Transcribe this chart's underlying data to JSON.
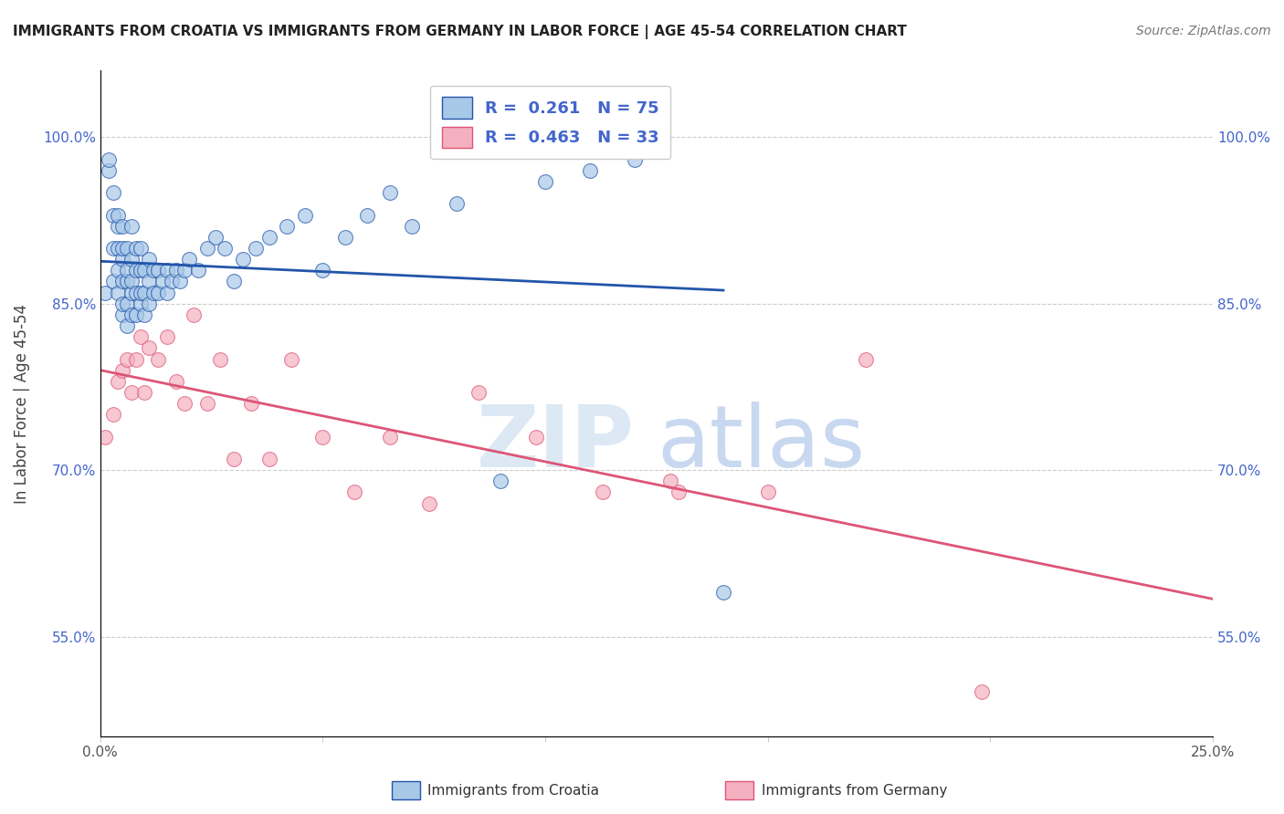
{
  "title": "IMMIGRANTS FROM CROATIA VS IMMIGRANTS FROM GERMANY IN LABOR FORCE | AGE 45-54 CORRELATION CHART",
  "source": "Source: ZipAtlas.com",
  "ylabel": "In Labor Force | Age 45-54",
  "xlim": [
    0.0,
    0.25
  ],
  "ylim": [
    0.46,
    1.06
  ],
  "xticks": [
    0.0,
    0.05,
    0.1,
    0.15,
    0.2,
    0.25
  ],
  "xticklabels": [
    "0.0%",
    "",
    "",
    "",
    "",
    "25.0%"
  ],
  "yticks": [
    0.55,
    0.7,
    0.85,
    1.0
  ],
  "yticklabels": [
    "55.0%",
    "70.0%",
    "85.0%",
    "100.0%"
  ],
  "R_croatia": 0.261,
  "N_croatia": 75,
  "R_germany": 0.463,
  "N_germany": 33,
  "color_croatia": "#a8c8e8",
  "color_germany": "#f4b0c0",
  "trend_croatia_color": "#2255aa",
  "trend_germany_color": "#dd5577",
  "legend_text_color": "#4466cc",
  "background_color": "#ffffff",
  "watermark_zip": "ZIP",
  "watermark_atlas": "atlas",
  "watermark_color": "#dde8f5",
  "grid_color": "#cccccc",
  "tick_color": "#4466cc",
  "croatia_x": [
    0.001,
    0.002,
    0.002,
    0.003,
    0.003,
    0.003,
    0.003,
    0.004,
    0.004,
    0.004,
    0.004,
    0.004,
    0.005,
    0.005,
    0.005,
    0.005,
    0.005,
    0.005,
    0.006,
    0.006,
    0.006,
    0.006,
    0.006,
    0.007,
    0.007,
    0.007,
    0.007,
    0.007,
    0.008,
    0.008,
    0.008,
    0.008,
    0.009,
    0.009,
    0.009,
    0.009,
    0.01,
    0.01,
    0.01,
    0.011,
    0.011,
    0.011,
    0.012,
    0.012,
    0.013,
    0.013,
    0.014,
    0.015,
    0.015,
    0.016,
    0.017,
    0.018,
    0.019,
    0.02,
    0.022,
    0.024,
    0.026,
    0.028,
    0.03,
    0.032,
    0.035,
    0.038,
    0.042,
    0.046,
    0.05,
    0.055,
    0.06,
    0.065,
    0.07,
    0.08,
    0.09,
    0.1,
    0.11,
    0.12,
    0.14
  ],
  "croatia_y": [
    0.86,
    0.97,
    0.98,
    0.87,
    0.9,
    0.93,
    0.95,
    0.86,
    0.88,
    0.9,
    0.92,
    0.93,
    0.84,
    0.85,
    0.87,
    0.89,
    0.9,
    0.92,
    0.83,
    0.85,
    0.87,
    0.88,
    0.9,
    0.84,
    0.86,
    0.87,
    0.89,
    0.92,
    0.84,
    0.86,
    0.88,
    0.9,
    0.85,
    0.86,
    0.88,
    0.9,
    0.84,
    0.86,
    0.88,
    0.85,
    0.87,
    0.89,
    0.86,
    0.88,
    0.86,
    0.88,
    0.87,
    0.86,
    0.88,
    0.87,
    0.88,
    0.87,
    0.88,
    0.89,
    0.88,
    0.9,
    0.91,
    0.9,
    0.87,
    0.89,
    0.9,
    0.91,
    0.92,
    0.93,
    0.88,
    0.91,
    0.93,
    0.95,
    0.92,
    0.94,
    0.69,
    0.96,
    0.97,
    0.98,
    0.59
  ],
  "germany_x": [
    0.001,
    0.003,
    0.004,
    0.005,
    0.006,
    0.007,
    0.008,
    0.009,
    0.01,
    0.011,
    0.013,
    0.015,
    0.017,
    0.019,
    0.021,
    0.024,
    0.027,
    0.03,
    0.034,
    0.038,
    0.043,
    0.05,
    0.057,
    0.065,
    0.074,
    0.085,
    0.098,
    0.113,
    0.13,
    0.15,
    0.172,
    0.198,
    0.128
  ],
  "germany_y": [
    0.73,
    0.75,
    0.78,
    0.79,
    0.8,
    0.77,
    0.8,
    0.82,
    0.77,
    0.81,
    0.8,
    0.82,
    0.78,
    0.76,
    0.84,
    0.76,
    0.8,
    0.71,
    0.76,
    0.71,
    0.8,
    0.73,
    0.68,
    0.73,
    0.67,
    0.77,
    0.73,
    0.68,
    0.68,
    0.68,
    0.8,
    0.5,
    0.69
  ]
}
